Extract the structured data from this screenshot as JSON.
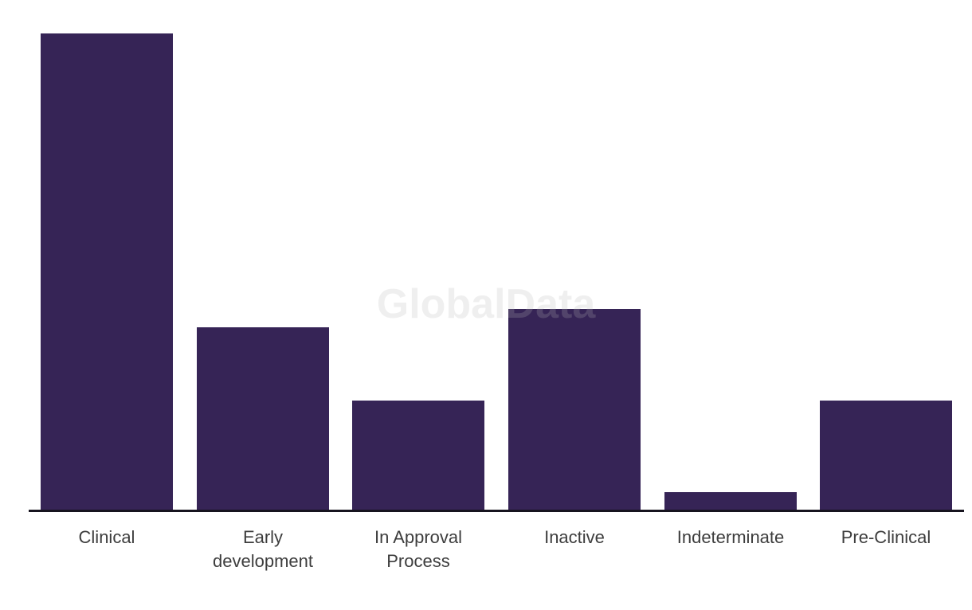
{
  "watermark_label": "GlobalData",
  "colors": {
    "bar_fill": "#362456",
    "axis_line": "#17141f",
    "category_label": "#3d3d3d",
    "watermark": "rgba(180,180,180,0.22)",
    "background": "#ffffff"
  },
  "chart_data": {
    "type": "bar",
    "title": "",
    "xlabel": "",
    "ylabel": "",
    "categories": [
      "Clinical",
      "Early development",
      "In Approval Process",
      "Inactive",
      "Indeterminate",
      "Pre-Clinical"
    ],
    "values": [
      26,
      10,
      6,
      11,
      1,
      6
    ],
    "ylim": [
      0,
      26
    ],
    "grid": false,
    "legend": false,
    "y_axis_shown": false,
    "x_axis_line": true,
    "watermark": "GlobalData"
  }
}
